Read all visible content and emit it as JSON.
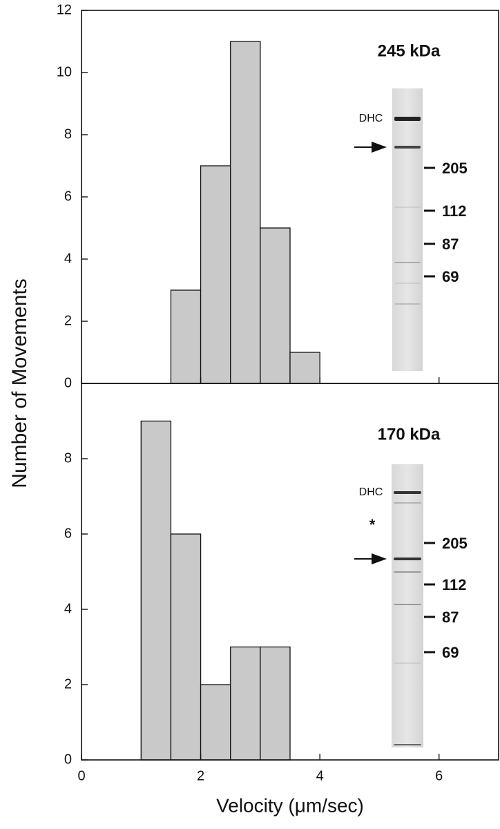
{
  "chart_data": [
    {
      "type": "histogram",
      "ylabel": "Number of Movements",
      "bins": [
        1.5,
        2,
        2.5,
        3,
        3.5,
        4
      ],
      "values": [
        3,
        7,
        11,
        5,
        1
      ],
      "color": "#c9c9c9",
      "xlim": [
        0,
        7
      ],
      "xticks": [
        0,
        2,
        4,
        6
      ],
      "ylim": [
        0,
        12
      ],
      "yticks": [
        0,
        2,
        4,
        6,
        8,
        10,
        12
      ],
      "annotations": {
        "panel_label": "245 kDa",
        "band": "DHC",
        "markers": [
          "205",
          "112",
          "87",
          "69"
        ]
      }
    },
    {
      "type": "histogram",
      "xlabel": "Velocity (μm/sec)",
      "bins": [
        1,
        1.5,
        2,
        2.5,
        3,
        3.5
      ],
      "values": [
        9,
        6,
        2,
        3,
        3
      ],
      "color": "#c9c9c9",
      "xlim": [
        0,
        7
      ],
      "xticks": [
        0,
        2,
        4,
        6
      ],
      "ylim": [
        0,
        10
      ],
      "yticks": [
        0,
        2,
        4,
        6,
        8
      ],
      "annotations": {
        "panel_label": "170 kDa",
        "band": "DHC",
        "star": "*",
        "markers": [
          "205",
          "112",
          "87",
          "69"
        ]
      }
    }
  ]
}
